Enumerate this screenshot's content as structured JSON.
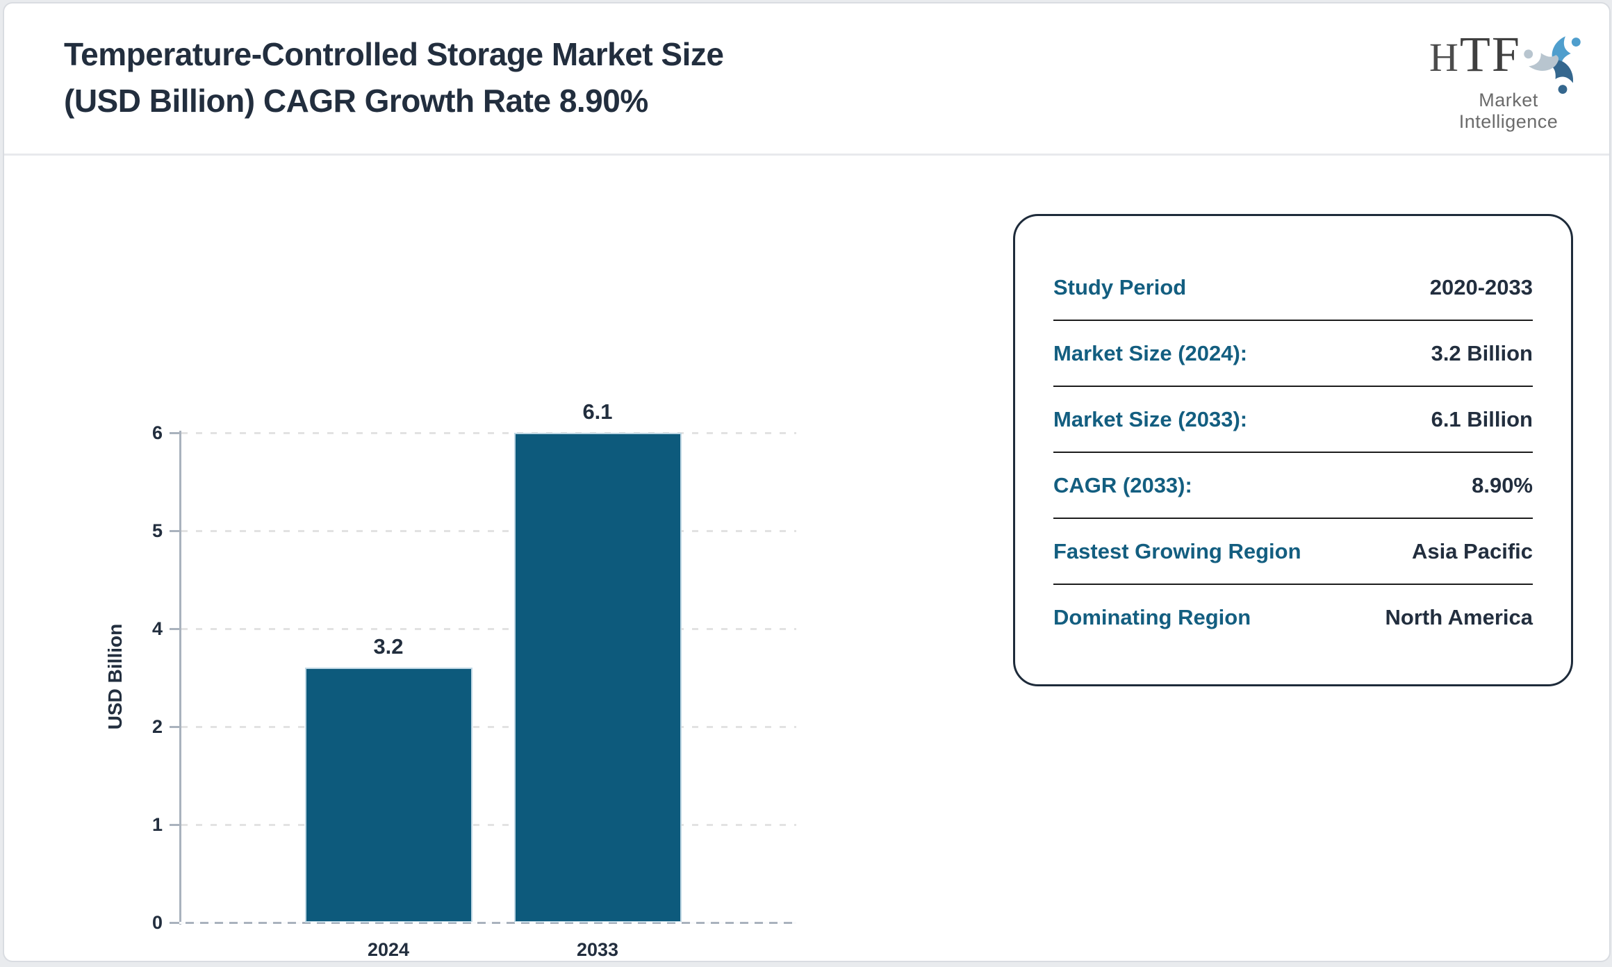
{
  "header": {
    "title_line1": "Temperature-Controlled Storage Market Size",
    "title_line2": "(USD Billion) CAGR Growth Rate 8.90%"
  },
  "logo": {
    "text": "HTF",
    "subtext": "Market Intelligence",
    "mark_colors": {
      "top_figure": "#4f9ecd",
      "bottom_right_figure": "#35678e",
      "left_figure": "#b8c5cf"
    }
  },
  "chart_data": {
    "type": "bar",
    "title": "Temperature-Controlled Storage Market Size (USD Billion) CAGR Growth Rate 8.90%",
    "categories": [
      "2024",
      "2033"
    ],
    "values": [
      3.2,
      6.1
    ],
    "value_labels": [
      "3.2",
      "6.1"
    ],
    "xlabel": "",
    "ylabel": "USD Billion",
    "yticks": [
      0,
      1,
      2,
      4,
      5,
      6
    ],
    "ylim": [
      0,
      6
    ],
    "grid": "dashed horizontal",
    "legend": "none",
    "bar_color": "#0d5a7c",
    "bar_border_color": "#bfd7e4"
  },
  "info_panel": {
    "rows": [
      {
        "label": "Study Period",
        "value": "2020-2033"
      },
      {
        "label": "Market Size (2024):",
        "value": "3.2 Billion"
      },
      {
        "label": "Market Size (2033):",
        "value": "6.1 Billion"
      },
      {
        "label": "CAGR (2033):",
        "value": "8.90%"
      },
      {
        "label": "Fastest Growing Region",
        "value": "Asia Pacific"
      },
      {
        "label": "Dominating Region",
        "value": "North America"
      }
    ]
  }
}
